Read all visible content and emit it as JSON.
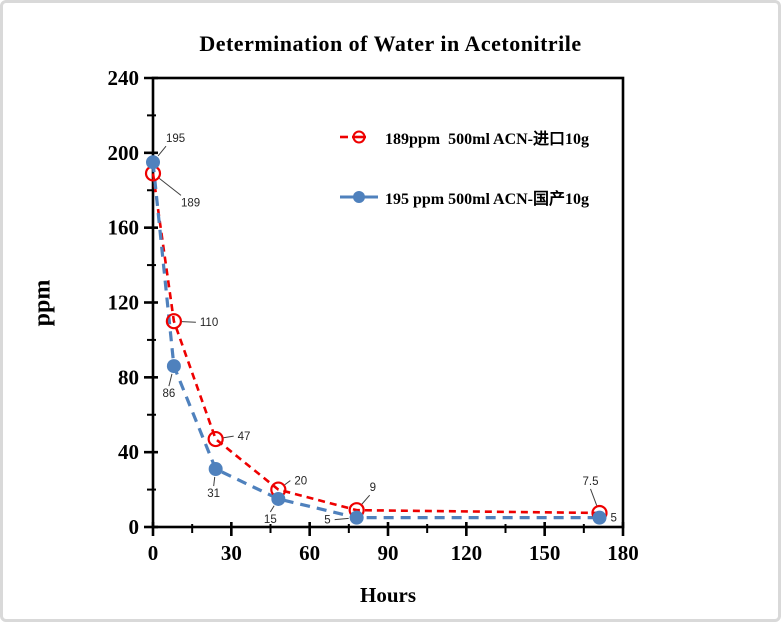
{
  "page": {
    "background": "#ffffff",
    "border_color": "#d9d9d9"
  },
  "chart_data": {
    "type": "line",
    "title": "Determination of Water in Acetonitrile",
    "xlabel": "Hours",
    "ylabel": "ppm",
    "xlim": [
      0,
      180
    ],
    "ylim": [
      0,
      240
    ],
    "x_major_ticks": [
      0,
      30,
      60,
      90,
      120,
      150,
      180
    ],
    "x_minor_step": 15,
    "y_major_ticks": [
      0,
      40,
      80,
      120,
      160,
      200,
      240
    ],
    "y_minor_step": 20,
    "grid": false,
    "legend_position": "inside-top-right",
    "axis_color": "#000000",
    "leader_color": "#3f3f3f",
    "series": [
      {
        "name": "189ppm  500ml ACN-进口10g",
        "color": "#ee0000",
        "marker": "open-circle",
        "line_style": "dashed",
        "points": [
          {
            "x": 0,
            "y": 189,
            "label": "189",
            "dx": 28,
            "dy": 33,
            "anchor": "start"
          },
          {
            "x": 8,
            "y": 110,
            "label": "110",
            "dx": 26,
            "dy": 5,
            "anchor": "start"
          },
          {
            "x": 24,
            "y": 47,
            "label": "47",
            "dx": 22,
            "dy": 1,
            "anchor": "start"
          },
          {
            "x": 48,
            "y": 20,
            "label": "20",
            "dx": 16,
            "dy": -5,
            "anchor": "start"
          },
          {
            "x": 78,
            "y": 9,
            "label": "9",
            "dx": 13,
            "dy": -19,
            "anchor": "start"
          },
          {
            "x": 171,
            "y": 7.5,
            "label": "7.5",
            "dx": -9,
            "dy": -28,
            "anchor": "middle"
          }
        ]
      },
      {
        "name": "195 ppm 500ml ACN-国产10g",
        "color": "#4f81bd",
        "marker": "filled-circle",
        "line_style": "dashed",
        "points": [
          {
            "x": 0,
            "y": 195,
            "label": "195",
            "dx": 13,
            "dy": -20,
            "anchor": "start"
          },
          {
            "x": 8,
            "y": 86,
            "label": "86",
            "dx": -5,
            "dy": 31,
            "anchor": "middle"
          },
          {
            "x": 24,
            "y": 31,
            "label": "31",
            "dx": -2,
            "dy": 28,
            "anchor": "middle"
          },
          {
            "x": 48,
            "y": 15,
            "label": "15",
            "dx": -8,
            "dy": 24,
            "anchor": "middle"
          },
          {
            "x": 78,
            "y": 5,
            "label": "5",
            "dx": -26,
            "dy": 6,
            "anchor": "end"
          },
          {
            "x": 171,
            "y": 5,
            "label": "5",
            "dx": 11,
            "dy": 4,
            "anchor": "start"
          }
        ]
      }
    ]
  }
}
